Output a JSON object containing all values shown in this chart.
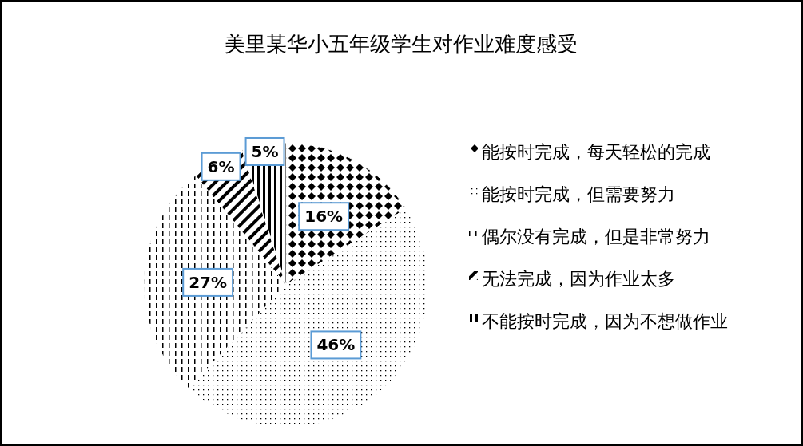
{
  "chart_data": {
    "type": "pie",
    "title": "美里某华小五年级学生对作业难度感受",
    "categories": [
      "能按时完成，每天轻松的完成",
      "能按时完成，但需要努力",
      "偶尔没有完成，但是非常努力",
      "无法完成，因为作业太多",
      "不能按时完成，因为不想做作业"
    ],
    "values": [
      16,
      46,
      27,
      6,
      5
    ],
    "value_labels": [
      "16%",
      "46%",
      "27%",
      "6%",
      "5%"
    ],
    "legend": "right"
  }
}
